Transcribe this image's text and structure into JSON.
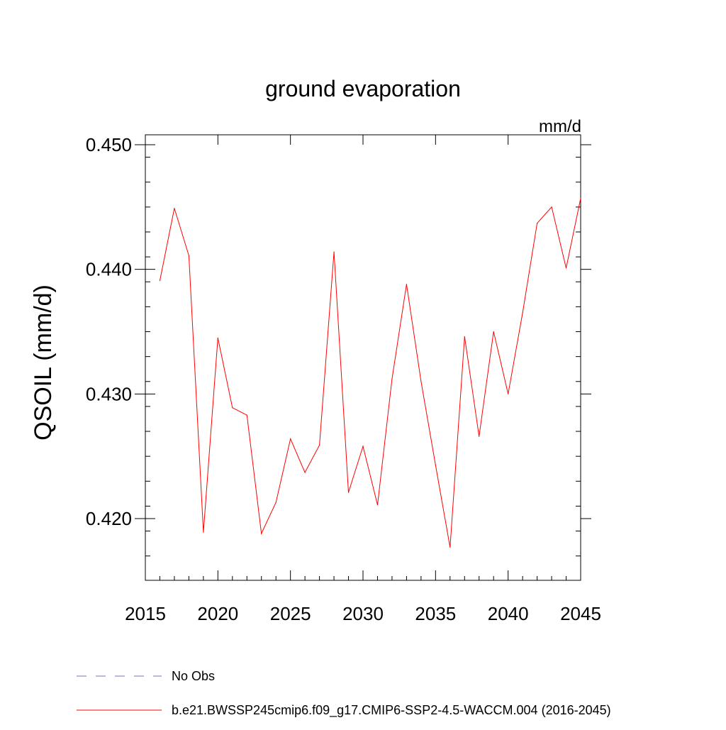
{
  "chart_data": {
    "type": "line",
    "title": "ground evaporation",
    "units": "mm/d",
    "xlabel": "",
    "ylabel": "QSOIL  (mm/d)",
    "xlim": [
      2015,
      2045
    ],
    "ylim": [
      0.415,
      0.451
    ],
    "x_ticks": [
      2015,
      2020,
      2025,
      2030,
      2035,
      2040,
      2045
    ],
    "x_tick_labels": [
      "2015",
      "2020",
      "2025",
      "2030",
      "2035",
      "2040",
      "2045"
    ],
    "y_ticks": [
      0.42,
      0.43,
      0.44,
      0.45
    ],
    "y_tick_labels": [
      "0.420",
      "0.430",
      "0.440",
      "0.450"
    ],
    "series": [
      {
        "name": "b.e21.BWSSP245cmip6.f09_g17.CMIP6-SSP2-4.5-WACCM.004 (2016-2045)",
        "color": "#ff0000",
        "x": [
          2016,
          2017,
          2018,
          2019,
          2020,
          2021,
          2022,
          2023,
          2024,
          2025,
          2026,
          2027,
          2028,
          2029,
          2030,
          2031,
          2032,
          2033,
          2034,
          2035,
          2036,
          2037,
          2038,
          2039,
          2040,
          2041,
          2042,
          2043,
          2044,
          2045
        ],
        "values": [
          0.4391,
          0.4449,
          0.4411,
          0.4189,
          0.4345,
          0.4289,
          0.4283,
          0.4188,
          0.4213,
          0.4264,
          0.4237,
          0.4259,
          0.4414,
          0.4221,
          0.4258,
          0.4211,
          0.4312,
          0.4388,
          0.431,
          0.4243,
          0.4177,
          0.4346,
          0.4266,
          0.435,
          0.43,
          0.4365,
          0.4437,
          0.445,
          0.4401,
          0.4457
        ]
      }
    ],
    "legend": [
      {
        "label": "No Obs",
        "color": "#7070c0",
        "style": "dashed"
      },
      {
        "label": "b.e21.BWSSP245cmip6.f09_g17.CMIP6-SSP2-4.5-WACCM.004 (2016-2045)",
        "color": "#ff0000",
        "style": "solid"
      }
    ]
  }
}
